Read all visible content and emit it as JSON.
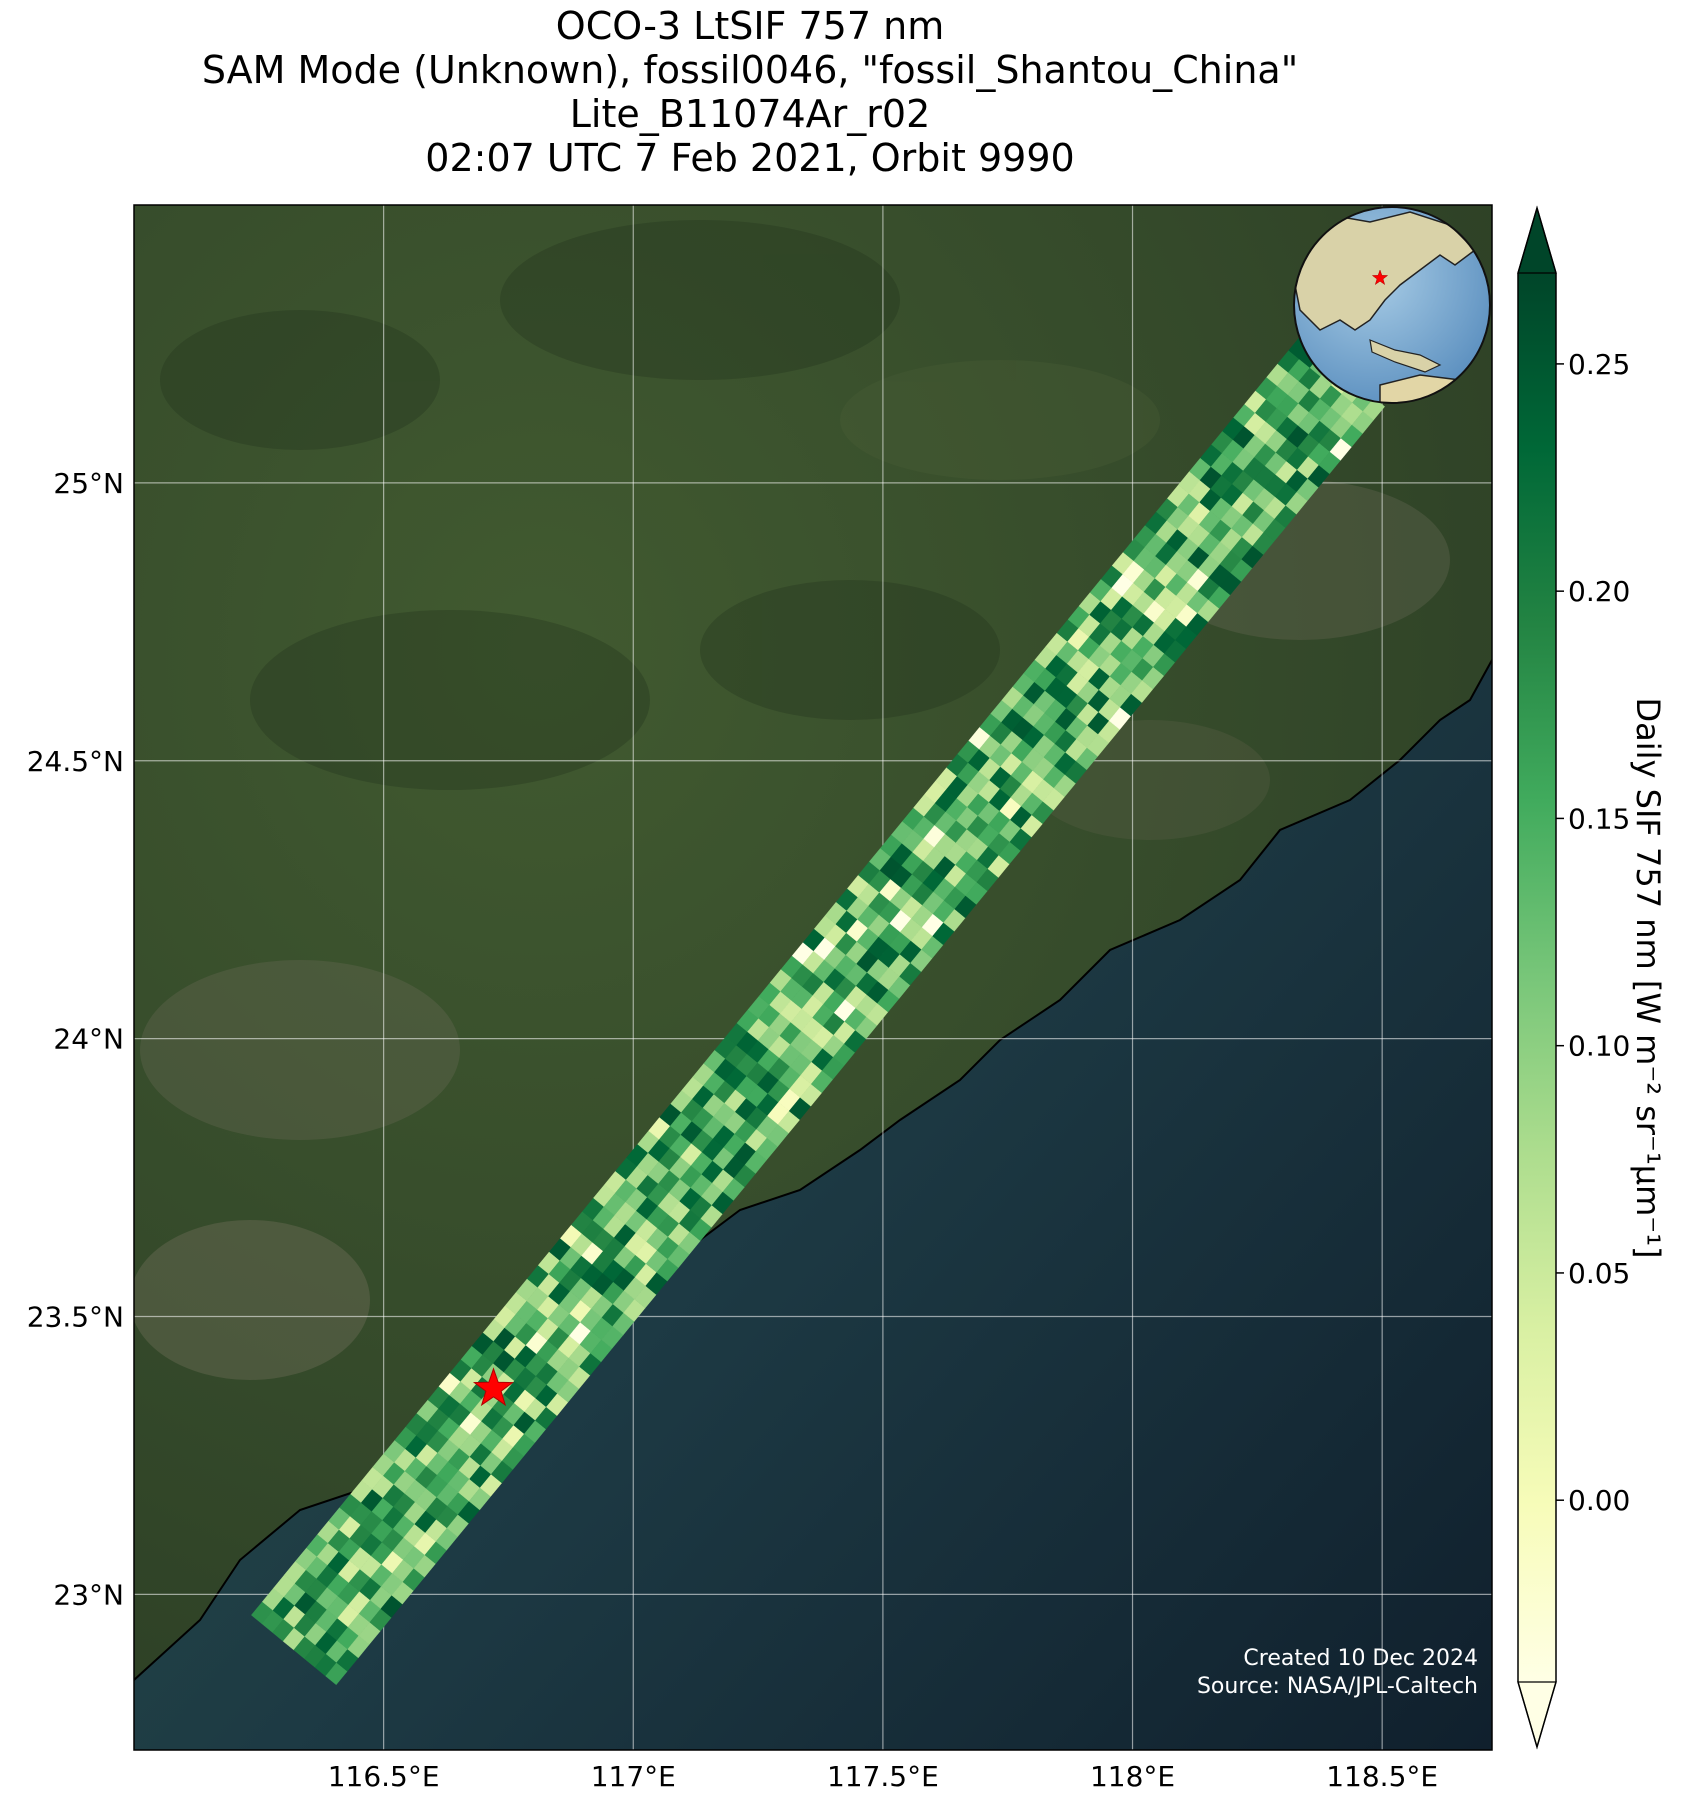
{
  "title": {
    "line1": "OCO-3 LtSIF 757 nm",
    "line2": "SAM Mode (Unknown), fossil0046, \"fossil_Shantou_China\"",
    "line3": "Lite_B11074Ar_r02",
    "line4": "02:07 UTC 7 Feb 2021, Orbit 9990"
  },
  "map": {
    "lon_range": [
      116.0,
      118.72
    ],
    "lat_range": [
      22.72,
      25.5
    ],
    "lon_ticks": [
      116.5,
      117.0,
      117.5,
      118.0,
      118.5
    ],
    "lon_tick_labels": [
      "116.5°E",
      "117°E",
      "117.5°E",
      "118°E",
      "118.5°E"
    ],
    "lat_ticks": [
      23.0,
      23.5,
      24.0,
      24.5,
      25.0
    ],
    "lat_tick_labels": [
      "23°N",
      "23.5°N",
      "24°N",
      "24.5°N",
      "25°N"
    ],
    "gridlines": true,
    "target_marker": {
      "lon": 116.72,
      "lat": 23.37,
      "color": "#ff0000",
      "shape": "star-icon"
    },
    "swath": {
      "start": {
        "lon": 116.32,
        "lat": 22.9
      },
      "end": {
        "lon": 118.42,
        "lat": 25.2
      },
      "width_deg": 0.22,
      "along_cells": 95,
      "cross_cells": 8
    },
    "inset_globe": {
      "placement": "top-right",
      "marker_color": "#ff0000"
    }
  },
  "colorbar": {
    "label": "Daily SIF 757 nm [W m⁻² sr⁻¹µm⁻¹]",
    "range": [
      -0.04,
      0.27
    ],
    "ticks": [
      0.0,
      0.05,
      0.1,
      0.15,
      0.2,
      0.25
    ],
    "tick_labels": [
      "0.00",
      "0.05",
      "0.10",
      "0.15",
      "0.20",
      "0.25"
    ],
    "colormap": "YlGn",
    "extend": "both"
  },
  "credit": {
    "created": "Created 10 Dec 2024",
    "source": "Source: NASA/JPL-Caltech"
  }
}
